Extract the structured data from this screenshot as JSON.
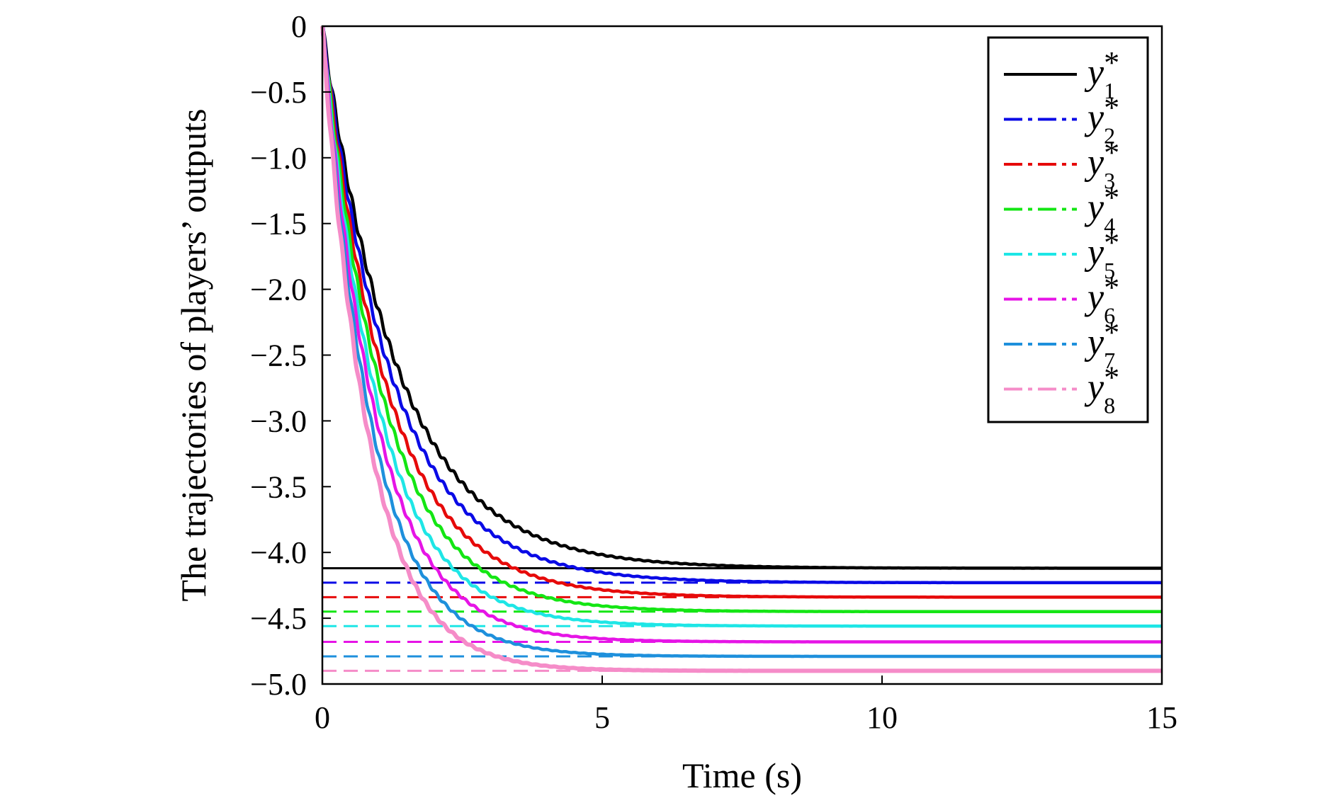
{
  "chart_data": {
    "type": "line",
    "title": "",
    "xlabel": "Time (s)",
    "ylabel": "The trajectories of players’ outputs",
    "xlim": [
      0,
      15
    ],
    "ylim": [
      -5.0,
      0
    ],
    "xticks": [
      {
        "value": 0,
        "label": "0"
      },
      {
        "value": 5,
        "label": "5"
      },
      {
        "value": 10,
        "label": "10"
      },
      {
        "value": 15,
        "label": "15"
      }
    ],
    "yticks": [
      {
        "value": 0,
        "label": "0"
      },
      {
        "value": -0.5,
        "label": "−0.5"
      },
      {
        "value": -1.0,
        "label": "−1.0"
      },
      {
        "value": -1.5,
        "label": "−1.5"
      },
      {
        "value": -2.0,
        "label": "−2.0"
      },
      {
        "value": -2.5,
        "label": "−2.5"
      },
      {
        "value": -3.0,
        "label": "−3.0"
      },
      {
        "value": -3.5,
        "label": "−3.5"
      },
      {
        "value": -4.0,
        "label": "−4.0"
      },
      {
        "value": -4.5,
        "label": "−4.5"
      },
      {
        "value": -5.0,
        "label": "−5.0"
      }
    ],
    "grid": false,
    "legend_position": "top-right",
    "legend": [
      {
        "base": "y",
        "sub": "1",
        "star": "*",
        "color": "#000000",
        "dash": "solid"
      },
      {
        "base": "y",
        "sub": "2",
        "star": "*",
        "color": "#0a0ae6",
        "dash": "dashdot"
      },
      {
        "base": "y",
        "sub": "3",
        "star": "*",
        "color": "#e60a0a",
        "dash": "dashdot"
      },
      {
        "base": "y",
        "sub": "4",
        "star": "*",
        "color": "#14e614",
        "dash": "dashdot"
      },
      {
        "base": "y",
        "sub": "5",
        "star": "*",
        "color": "#1ee6e6",
        "dash": "dashdot"
      },
      {
        "base": "y",
        "sub": "6",
        "star": "*",
        "color": "#e614e6",
        "dash": "dashdot"
      },
      {
        "base": "y",
        "sub": "7",
        "star": "*",
        "color": "#1e90dc",
        "dash": "dashdot"
      },
      {
        "base": "y",
        "sub": "8",
        "star": "*",
        "color": "#f58cc8",
        "dash": "dashdot"
      }
    ],
    "series": [
      {
        "color": "#000000",
        "reference": -4.12,
        "tau": 1.35
      },
      {
        "color": "#0a0ae6",
        "reference": -4.23,
        "tau": 1.25
      },
      {
        "color": "#e60a0a",
        "reference": -4.34,
        "tau": 1.15
      },
      {
        "color": "#14e614",
        "reference": -4.45,
        "tau": 1.08
      },
      {
        "color": "#1ee6e6",
        "reference": -4.56,
        "tau": 1.0
      },
      {
        "color": "#e614e6",
        "reference": -4.68,
        "tau": 0.95
      },
      {
        "color": "#1e90dc",
        "reference": -4.79,
        "tau": 0.88
      },
      {
        "color": "#f58cc8",
        "reference": -4.9,
        "tau": 0.82
      }
    ]
  }
}
